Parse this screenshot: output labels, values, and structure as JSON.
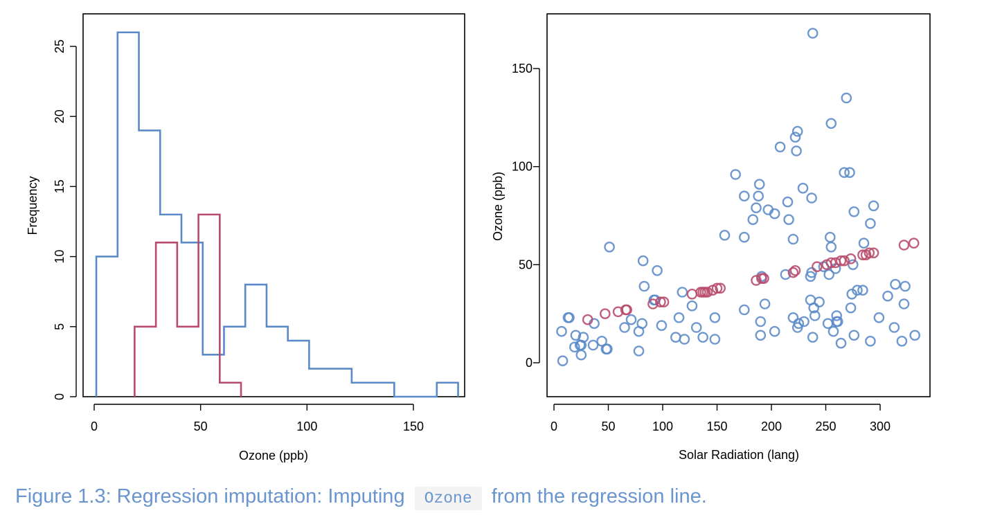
{
  "colors": {
    "observed": "#5b8ac8",
    "imputed": "#b84a6c",
    "caption": "#6a95cf"
  },
  "caption": {
    "prefix": "Figure 1.3: Regression imputation: Imputing",
    "code": "Ozone",
    "suffix": "from the regression line."
  },
  "chart_data": [
    {
      "type": "histogram",
      "xlabel": "Ozone (ppb)",
      "ylabel": "Frequency",
      "xlim": [
        0,
        170
      ],
      "ylim": [
        0,
        26
      ],
      "x_ticks": [
        0,
        50,
        100,
        150
      ],
      "y_ticks": [
        0,
        5,
        10,
        15,
        20,
        25
      ],
      "series": [
        {
          "color": "#5b8ac8",
          "bin_edges": [
            1,
            11,
            21,
            31,
            41,
            51,
            61,
            71,
            81,
            91,
            101,
            111,
            121,
            131,
            141,
            151,
            161,
            171
          ],
          "counts": [
            10,
            26,
            19,
            13,
            11,
            3,
            5,
            8,
            5,
            4,
            2,
            2,
            1,
            1,
            0,
            0,
            1
          ]
        },
        {
          "color": "#b84a6c",
          "bin_edges": [
            19,
            29,
            39,
            49,
            59,
            69
          ],
          "counts": [
            5,
            11,
            5,
            13,
            1
          ]
        }
      ]
    },
    {
      "type": "scatter",
      "xlabel": "Solar Radiation (lang)",
      "ylabel": "Ozone (ppb)",
      "xlim": [
        0,
        334
      ],
      "ylim": [
        1,
        168
      ],
      "x_ticks": [
        0,
        50,
        100,
        150,
        200,
        250,
        300
      ],
      "y_ticks": [
        0,
        50,
        100,
        150
      ],
      "series": [
        {
          "color": "#5b8ac8",
          "points": [
            [
              8,
              1
            ],
            [
              7,
              16
            ],
            [
              13,
              23
            ],
            [
              14,
              23
            ],
            [
              19,
              8
            ],
            [
              20,
              14
            ],
            [
              24,
              9
            ],
            [
              25,
              9
            ],
            [
              25,
              4
            ],
            [
              27,
              13
            ],
            [
              36,
              9
            ],
            [
              37,
              20
            ],
            [
              44,
              11
            ],
            [
              48,
              7
            ],
            [
              49,
              7
            ],
            [
              51,
              59
            ],
            [
              65,
              18
            ],
            [
              71,
              22
            ],
            [
              78,
              16
            ],
            [
              78,
              6
            ],
            [
              81,
              20
            ],
            [
              82,
              52
            ],
            [
              83,
              39
            ],
            [
              92,
              32
            ],
            [
              93,
              32
            ],
            [
              95,
              47
            ],
            [
              99,
              19
            ],
            [
              112,
              13
            ],
            [
              115,
              23
            ],
            [
              118,
              36
            ],
            [
              120,
              12
            ],
            [
              127,
              29
            ],
            [
              131,
              18
            ],
            [
              137,
              13
            ],
            [
              148,
              12
            ],
            [
              148,
              23
            ],
            [
              157,
              65
            ],
            [
              167,
              96
            ],
            [
              175,
              64
            ],
            [
              175,
              85
            ],
            [
              175,
              27
            ],
            [
              183,
              73
            ],
            [
              186,
              79
            ],
            [
              188,
              85
            ],
            [
              189,
              91
            ],
            [
              190,
              14
            ],
            [
              190,
              21
            ],
            [
              191,
              44
            ],
            [
              194,
              30
            ],
            [
              197,
              78
            ],
            [
              203,
              76
            ],
            [
              203,
              16
            ],
            [
              208,
              110
            ],
            [
              213,
              45
            ],
            [
              215,
              82
            ],
            [
              216,
              73
            ],
            [
              220,
              63
            ],
            [
              220,
              23
            ],
            [
              222,
              115
            ],
            [
              223,
              108
            ],
            [
              224,
              118
            ],
            [
              224,
              18
            ],
            [
              225,
              20
            ],
            [
              229,
              89
            ],
            [
              230,
              21
            ],
            [
              236,
              44
            ],
            [
              236,
              32
            ],
            [
              237,
              84
            ],
            [
              237,
              46
            ],
            [
              238,
              168
            ],
            [
              238,
              13
            ],
            [
              239,
              28
            ],
            [
              240,
              24
            ],
            [
              244,
              31
            ],
            [
              248,
              49
            ],
            [
              252,
              20
            ],
            [
              253,
              45
            ],
            [
              254,
              64
            ],
            [
              255,
              59
            ],
            [
              255,
              122
            ],
            [
              257,
              16
            ],
            [
              259,
              48
            ],
            [
              260,
              21
            ],
            [
              260,
              24
            ],
            [
              261,
              21
            ],
            [
              264,
              10
            ],
            [
              267,
              97
            ],
            [
              269,
              135
            ],
            [
              272,
              97
            ],
            [
              273,
              28
            ],
            [
              274,
              35
            ],
            [
              275,
              50
            ],
            [
              276,
              14
            ],
            [
              276,
              77
            ],
            [
              279,
              37
            ],
            [
              284,
              37
            ],
            [
              285,
              61
            ],
            [
              291,
              11
            ],
            [
              291,
              71
            ],
            [
              294,
              80
            ],
            [
              299,
              23
            ],
            [
              307,
              34
            ],
            [
              313,
              18
            ],
            [
              314,
              40
            ],
            [
              320,
              11
            ],
            [
              322,
              30
            ],
            [
              323,
              39
            ],
            [
              332,
              14
            ]
          ]
        },
        {
          "color": "#b84a6c",
          "points": [
            [
              31,
              22
            ],
            [
              47,
              25
            ],
            [
              59,
              26
            ],
            [
              66,
              27
            ],
            [
              67,
              27
            ],
            [
              91,
              30
            ],
            [
              98,
              31
            ],
            [
              101,
              31
            ],
            [
              127,
              35
            ],
            [
              135,
              36
            ],
            [
              137,
              36
            ],
            [
              139,
              36
            ],
            [
              141,
              36
            ],
            [
              146,
              37
            ],
            [
              150,
              38
            ],
            [
              153,
              38
            ],
            [
              186,
              42
            ],
            [
              191,
              43
            ],
            [
              193,
              43
            ],
            [
              220,
              46
            ],
            [
              222,
              47
            ],
            [
              242,
              49
            ],
            [
              251,
              50
            ],
            [
              255,
              51
            ],
            [
              259,
              51
            ],
            [
              264,
              52
            ],
            [
              267,
              52
            ],
            [
              273,
              53
            ],
            [
              284,
              55
            ],
            [
              287,
              55
            ],
            [
              290,
              56
            ],
            [
              294,
              56
            ],
            [
              322,
              60
            ],
            [
              331,
              61
            ]
          ]
        }
      ]
    }
  ]
}
